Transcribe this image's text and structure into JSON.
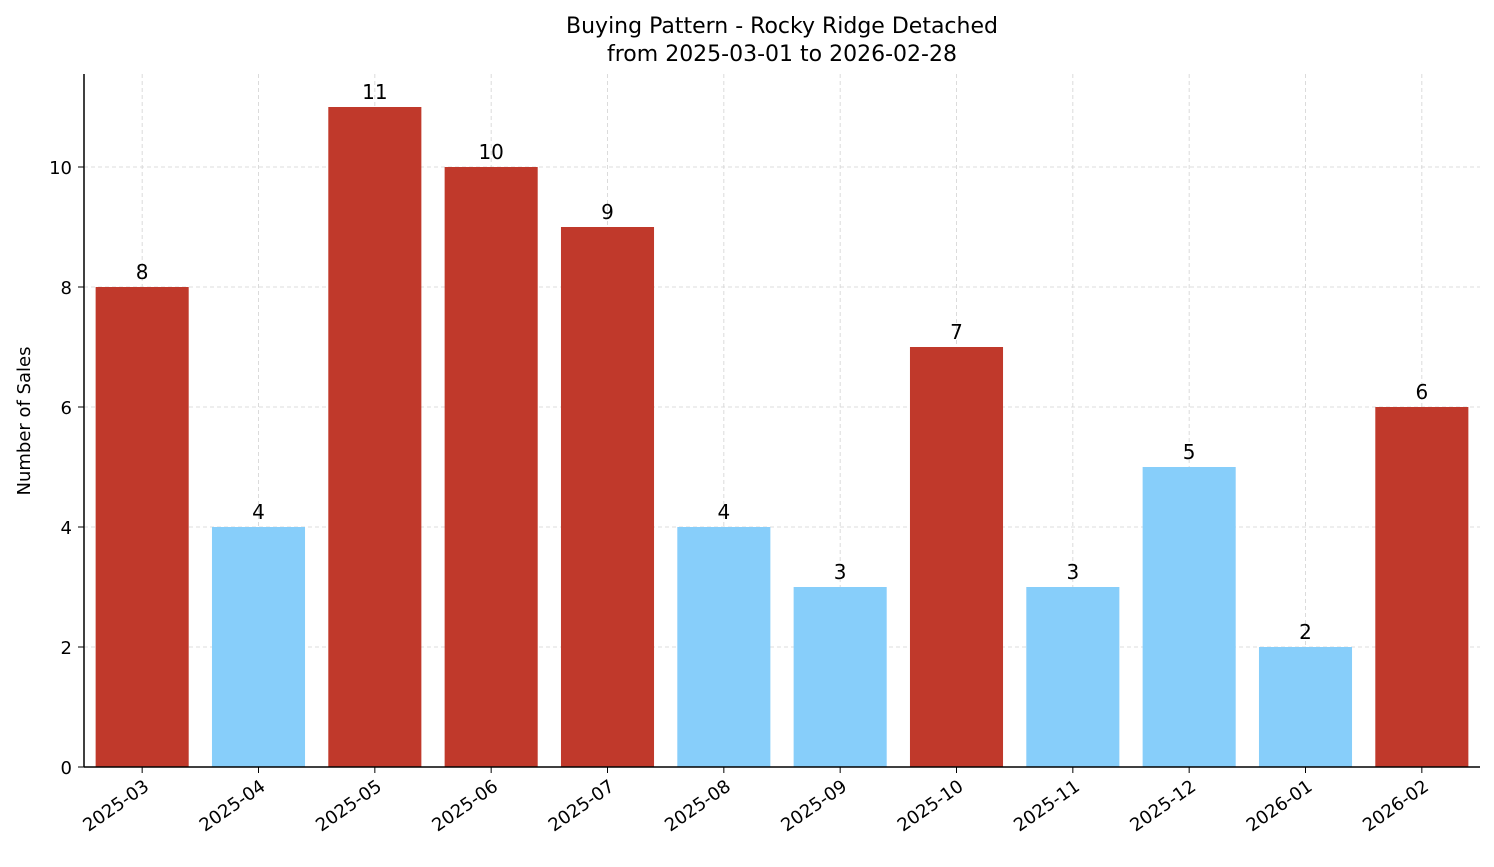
{
  "chart_data": {
    "type": "bar",
    "title": "Buying Pattern - Rocky Ridge Detached",
    "subtitle": "from 2025-03-01 to 2026-02-28",
    "xlabel": "",
    "ylabel": "Number of Sales",
    "categories": [
      "2025-03",
      "2025-04",
      "2025-05",
      "2025-06",
      "2025-07",
      "2025-08",
      "2025-09",
      "2025-10",
      "2025-11",
      "2025-12",
      "2026-01",
      "2026-02"
    ],
    "values": [
      8,
      4,
      11,
      10,
      9,
      4,
      3,
      7,
      3,
      5,
      2,
      6
    ],
    "bar_colors": [
      "#c0392b",
      "#87cefa",
      "#c0392b",
      "#c0392b",
      "#c0392b",
      "#87cefa",
      "#87cefa",
      "#c0392b",
      "#87cefa",
      "#87cefa",
      "#87cefa",
      "#c0392b"
    ],
    "yticks": [
      0,
      2,
      4,
      6,
      8,
      10
    ],
    "ylim": [
      0,
      11.55
    ],
    "grid": true,
    "data_labels": true
  }
}
